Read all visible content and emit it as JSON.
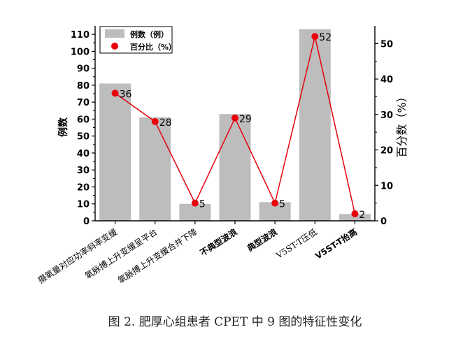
{
  "chart_data": {
    "type": "bar",
    "categories": [
      "摄氧量对应功率斜率变缓",
      "氧脉搏上升变缓呈平台",
      "氧脉搏上升变缓合并下降",
      "不典型波浪",
      "典型波浪",
      "V5ST-T压低",
      "V5ST-T抬高"
    ],
    "series": [
      {
        "name": "例数（例）",
        "type": "bar",
        "axis": "left",
        "values": [
          81,
          61,
          10,
          63,
          11,
          113,
          4
        ]
      },
      {
        "name": "百分比（%）",
        "type": "line",
        "axis": "right",
        "values": [
          36,
          28,
          5,
          29,
          5,
          52,
          2
        ],
        "labels": [
          "36",
          "28",
          "5",
          "29",
          "5",
          "52",
          "2"
        ]
      }
    ],
    "ylabel": "例数",
    "y2label": "百分数（%）",
    "ylim": [
      0,
      115
    ],
    "y2lim": [
      0,
      55
    ],
    "yticks": [
      "0",
      "10",
      "20",
      "30",
      "40",
      "50",
      "60",
      "70",
      "80",
      "90",
      "100",
      "110"
    ],
    "y2ticks": [
      "0",
      "10",
      "20",
      "30",
      "40",
      "50"
    ],
    "legend_position": "top-left",
    "colors": {
      "bar": "#bdbdbd",
      "line": "#e8000b",
      "marker": "#e8000b"
    }
  },
  "caption": "图 2. 肥厚心组患者 CPET 中 9 图的特征性变化"
}
